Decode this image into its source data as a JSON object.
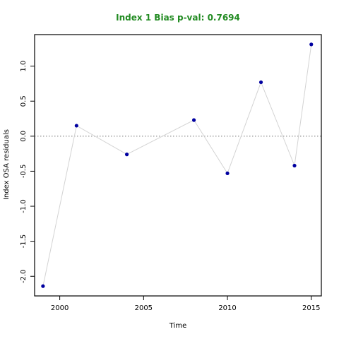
{
  "chart_data": {
    "type": "scatter",
    "title": "Index 1 Bias p-val: 0.7694",
    "xlabel": "Time",
    "ylabel": "Index OSA residuals",
    "xlim": [
      1998.5,
      2015.6
    ],
    "ylim": [
      -2.28,
      1.45
    ],
    "x_ticks": [
      2000,
      2005,
      2010,
      2015
    ],
    "x_tick_labels": [
      "2000",
      "2005",
      "2010",
      "2015"
    ],
    "y_ticks": [
      -2.0,
      -1.5,
      -1.0,
      -0.5,
      0.0,
      0.5,
      1.0
    ],
    "y_tick_labels": [
      "-2.0",
      "-1.5",
      "-1.0",
      "-0.5",
      "0.0",
      "0.5",
      "1.0"
    ],
    "reference_line": 0.0,
    "grid": false,
    "series": [
      {
        "x": [
          1999,
          2001,
          2004,
          2008,
          2010,
          2012,
          2014,
          2015
        ],
        "y": [
          -2.14,
          0.15,
          -0.26,
          0.23,
          -0.53,
          0.77,
          -0.42,
          1.31
        ]
      }
    ],
    "colors": {
      "points": "#0000a0",
      "line": "#d3d3d3",
      "reference": "#808080",
      "title": "#228b22"
    }
  }
}
